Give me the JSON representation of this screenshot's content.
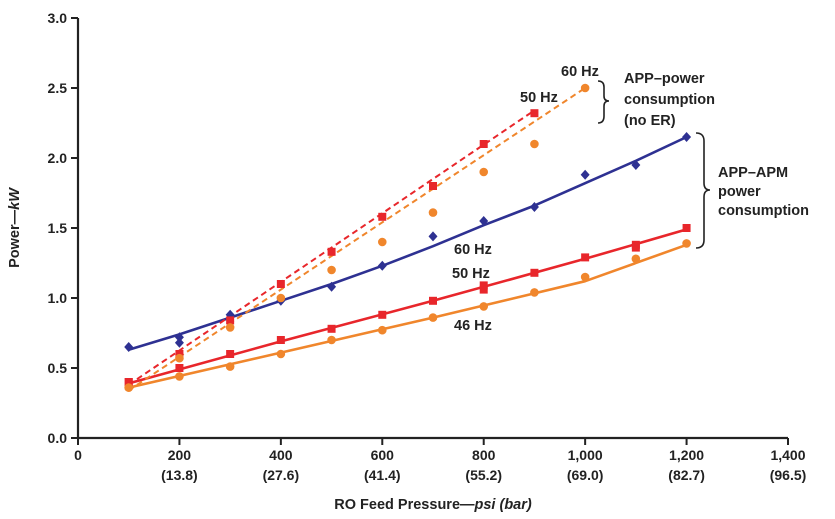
{
  "chart_data": {
    "type": "scatter",
    "title": "",
    "xlabel": {
      "main": "RO Feed Pressure—",
      "unit": "psi (bar)"
    },
    "ylabel": {
      "main": "Power—",
      "unit": "kW"
    },
    "xlim": [
      0,
      1400
    ],
    "ylim": [
      0,
      3.0
    ],
    "grid": false,
    "x_ticks": [
      {
        "value": 0,
        "label": "0",
        "sublabel": ""
      },
      {
        "value": 200,
        "label": "200",
        "sublabel": "(13.8)"
      },
      {
        "value": 400,
        "label": "400",
        "sublabel": "(27.6)"
      },
      {
        "value": 600,
        "label": "600",
        "sublabel": "(41.4)"
      },
      {
        "value": 800,
        "label": "800",
        "sublabel": "(55.2)"
      },
      {
        "value": 1000,
        "label": "1,000",
        "sublabel": "(69.0)"
      },
      {
        "value": 1200,
        "label": "1,200",
        "sublabel": "(82.7)"
      },
      {
        "value": 1400,
        "label": "1,400",
        "sublabel": "(96.5)"
      }
    ],
    "y_ticks": [
      {
        "value": 0,
        "label": "0.0"
      },
      {
        "value": 0.5,
        "label": "0.5"
      },
      {
        "value": 1.0,
        "label": "1.0"
      },
      {
        "value": 1.5,
        "label": "1.5"
      },
      {
        "value": 2.0,
        "label": "2.0"
      },
      {
        "value": 2.5,
        "label": "2.5"
      },
      {
        "value": 3.0,
        "label": "3.0"
      }
    ],
    "series": [
      {
        "group": "APP-APM",
        "color": "#2e3192",
        "marker": "diamond",
        "line": "solid",
        "points": [
          [
            100,
            0.65
          ],
          [
            200,
            0.72
          ],
          [
            200,
            0.68
          ],
          [
            300,
            0.88
          ],
          [
            400,
            0.98
          ],
          [
            500,
            1.08
          ],
          [
            600,
            1.23
          ],
          [
            700,
            1.44
          ],
          [
            800,
            1.55
          ],
          [
            900,
            1.65
          ],
          [
            1000,
            1.88
          ],
          [
            1100,
            1.95
          ],
          [
            1200,
            2.15
          ]
        ],
        "fit": [
          [
            100,
            0.63
          ],
          [
            200,
            0.74
          ],
          [
            300,
            0.86
          ],
          [
            400,
            0.98
          ],
          [
            500,
            1.1
          ],
          [
            600,
            1.23
          ],
          [
            700,
            1.37
          ],
          [
            800,
            1.52
          ],
          [
            900,
            1.66
          ],
          [
            1000,
            1.82
          ],
          [
            1100,
            1.98
          ],
          [
            1200,
            2.15
          ]
        ]
      },
      {
        "group": "APP-APM",
        "color": "#e8262b",
        "marker": "square",
        "line": "solid",
        "points": [
          [
            100,
            0.4
          ],
          [
            200,
            0.5
          ],
          [
            300,
            0.6
          ],
          [
            400,
            0.7
          ],
          [
            500,
            0.78
          ],
          [
            600,
            0.88
          ],
          [
            700,
            0.98
          ],
          [
            800,
            1.06
          ],
          [
            800,
            1.09
          ],
          [
            900,
            1.18
          ],
          [
            1000,
            1.29
          ],
          [
            1100,
            1.36
          ],
          [
            1100,
            1.38
          ],
          [
            1200,
            1.5
          ]
        ],
        "fit": [
          [
            100,
            0.39
          ],
          [
            400,
            0.69
          ],
          [
            700,
            0.98
          ],
          [
            1000,
            1.28
          ],
          [
            1200,
            1.49
          ]
        ]
      },
      {
        "group": "APP-APM",
        "color": "#f0862c",
        "marker": "circle",
        "line": "solid",
        "points": [
          [
            100,
            0.36
          ],
          [
            200,
            0.44
          ],
          [
            300,
            0.51
          ],
          [
            400,
            0.6
          ],
          [
            500,
            0.7
          ],
          [
            600,
            0.77
          ],
          [
            700,
            0.86
          ],
          [
            800,
            0.94
          ],
          [
            900,
            1.04
          ],
          [
            1000,
            1.15
          ],
          [
            1100,
            1.28
          ],
          [
            1200,
            1.39
          ]
        ],
        "fit": [
          [
            100,
            0.36
          ],
          [
            400,
            0.61
          ],
          [
            700,
            0.86
          ],
          [
            1000,
            1.12
          ],
          [
            1200,
            1.38
          ]
        ]
      },
      {
        "group": "APP (no ER)",
        "color": "#e8262b",
        "marker": "square",
        "line": "dashed",
        "points": [
          [
            100,
            0.4
          ],
          [
            200,
            0.6
          ],
          [
            300,
            0.84
          ],
          [
            400,
            1.1
          ],
          [
            500,
            1.33
          ],
          [
            600,
            1.58
          ],
          [
            700,
            1.8
          ],
          [
            800,
            2.1
          ],
          [
            900,
            2.32
          ]
        ],
        "fit": [
          [
            100,
            0.38
          ],
          [
            900,
            2.34
          ]
        ]
      },
      {
        "group": "APP (no ER)",
        "color": "#f0862c",
        "marker": "circle",
        "line": "dashed",
        "points": [
          [
            100,
            0.36
          ],
          [
            200,
            0.57
          ],
          [
            300,
            0.79
          ],
          [
            400,
            1.0
          ],
          [
            500,
            1.2
          ],
          [
            600,
            1.4
          ],
          [
            700,
            1.61
          ],
          [
            800,
            1.9
          ],
          [
            900,
            2.1
          ],
          [
            1000,
            2.5
          ]
        ],
        "fit": [
          [
            100,
            0.34
          ],
          [
            1000,
            2.5
          ]
        ]
      }
    ],
    "annotations": {
      "label_60hz_apm": "60 Hz",
      "label_50hz_apm": "50 Hz",
      "label_46hz_apm": "46 Hz",
      "label_60hz_app": "60 Hz",
      "label_50hz_app": "50 Hz",
      "app_bracket_lines": [
        "APP–power",
        "consumption",
        "(no ER)"
      ],
      "apm_bracket_lines": [
        "APP–APM",
        "power",
        "consumption"
      ]
    }
  }
}
